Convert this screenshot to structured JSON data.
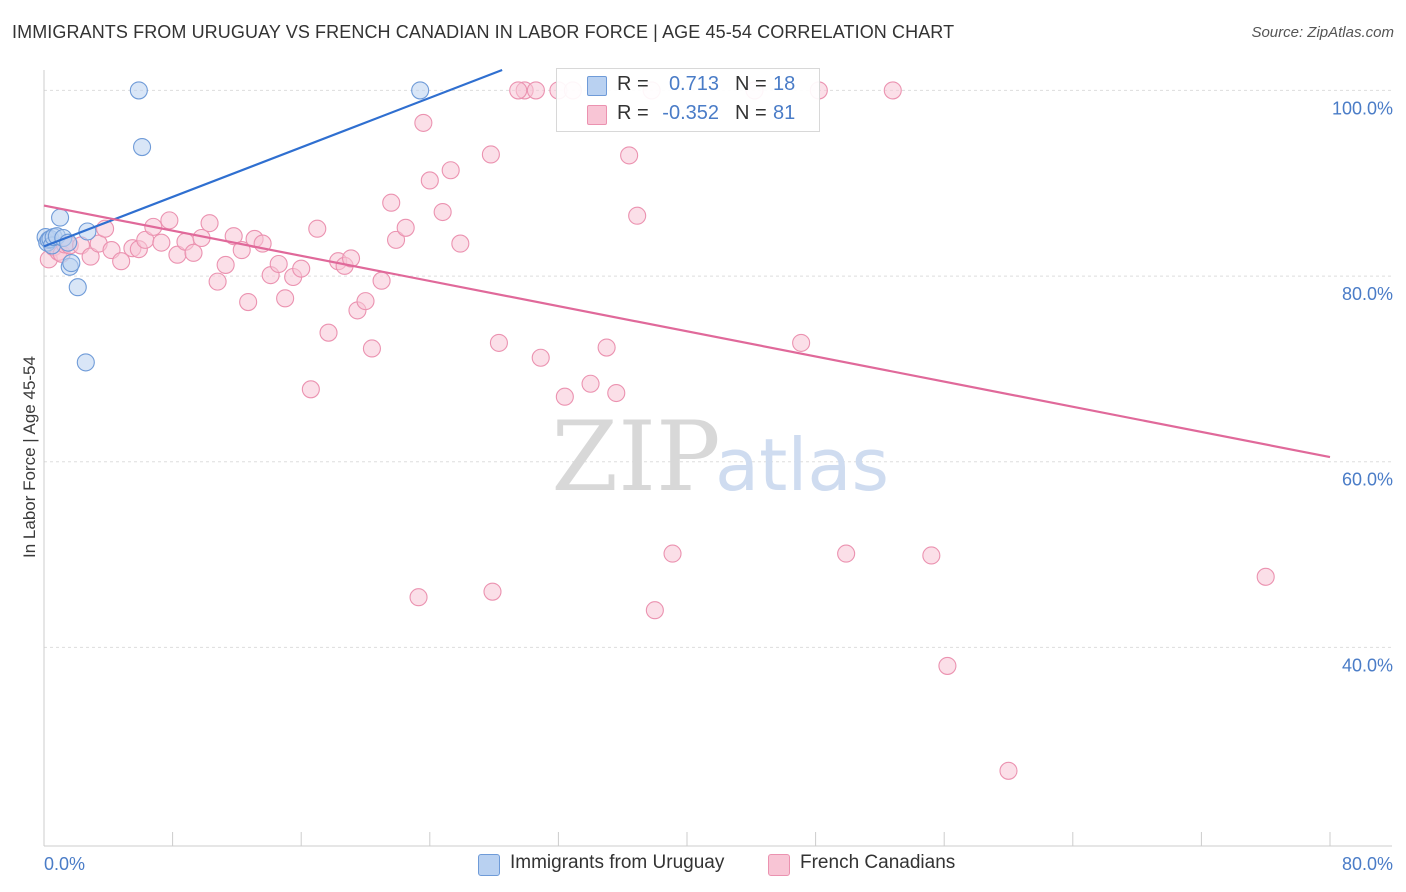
{
  "title": "IMMIGRANTS FROM URUGUAY VS FRENCH CANADIAN IN LABOR FORCE | AGE 45-54 CORRELATION CHART",
  "source": "Source: ZipAtlas.com",
  "watermark": {
    "zip": "ZIP",
    "atlas": "atlas"
  },
  "colors": {
    "blue_fill": "#b9d1f1",
    "blue_stroke": "#6f9bd8",
    "blue_line": "#2f6fd0",
    "pink_fill": "#f8c5d5",
    "pink_stroke": "#eb92b0",
    "pink_line": "#e0699a",
    "tick_text": "#4a7cc7",
    "grid": "#dddddd"
  },
  "legend": {
    "rows": [
      {
        "series": "blue",
        "r_label": "R =",
        "r_value": "0.713",
        "n_label": "N =",
        "n_value": "18"
      },
      {
        "series": "pink",
        "r_label": "R =",
        "r_value": "-0.352",
        "n_label": "N =",
        "n_value": "81"
      }
    ]
  },
  "bottom_legend": [
    {
      "series": "blue",
      "label": "Immigrants from Uruguay"
    },
    {
      "series": "pink",
      "label": "French Canadians"
    }
  ],
  "chart_data": {
    "type": "scatter",
    "title": "IMMIGRANTS FROM URUGUAY VS FRENCH CANADIAN IN LABOR FORCE | AGE 45-54 CORRELATION CHART",
    "xlabel": "",
    "ylabel": "In Labor Force | Age 45-54",
    "xlim": [
      0,
      80
    ],
    "ylim": [
      18.6,
      102.2
    ],
    "x_tick_labels": [
      {
        "value": 0,
        "label": "0.0%"
      },
      {
        "value": 80,
        "label": "80.0%"
      }
    ],
    "y_tick_labels": [
      {
        "value": 100,
        "label": "100.0%"
      },
      {
        "value": 80,
        "label": "80.0%"
      },
      {
        "value": 60,
        "label": "60.0%"
      },
      {
        "value": 40,
        "label": "40.0%"
      }
    ],
    "x_minor_ticks": [
      0,
      8,
      16,
      24,
      32,
      40,
      48,
      56,
      64,
      72,
      80
    ],
    "series": [
      {
        "name": "Immigrants from Uruguay",
        "color": "blue",
        "r": 0.713,
        "n": 18,
        "trend": {
          "x": [
            0,
            28.5
          ],
          "y": [
            83.2,
            102.2
          ]
        },
        "points": [
          [
            0.1,
            84.2
          ],
          [
            0.2,
            83.6
          ],
          [
            0.3,
            83.9
          ],
          [
            0.4,
            84.0
          ],
          [
            0.5,
            83.3
          ],
          [
            0.6,
            84.2
          ],
          [
            0.8,
            84.3
          ],
          [
            1.0,
            86.3
          ],
          [
            1.2,
            84.1
          ],
          [
            1.5,
            83.6
          ],
          [
            1.6,
            81.0
          ],
          [
            1.7,
            81.4
          ],
          [
            2.1,
            78.8
          ],
          [
            2.6,
            70.7
          ],
          [
            2.7,
            84.8
          ],
          [
            5.9,
            100.0
          ],
          [
            6.1,
            93.9
          ],
          [
            23.4,
            100.0
          ]
        ]
      },
      {
        "name": "French Canadians",
        "color": "pink",
        "r": -0.352,
        "n": 81,
        "trend": {
          "x": [
            0,
            80
          ],
          "y": [
            87.6,
            60.5
          ]
        },
        "points": [
          [
            0.3,
            81.8
          ],
          [
            0.6,
            83.1
          ],
          [
            0.9,
            82.6
          ],
          [
            1.1,
            82.4
          ],
          [
            1.3,
            83.4
          ],
          [
            1.6,
            83.3
          ],
          [
            2.3,
            83.3
          ],
          [
            2.9,
            82.1
          ],
          [
            3.4,
            83.5
          ],
          [
            3.8,
            85.1
          ],
          [
            4.2,
            82.8
          ],
          [
            4.8,
            81.6
          ],
          [
            5.5,
            83.0
          ],
          [
            5.9,
            82.9
          ],
          [
            6.3,
            83.9
          ],
          [
            6.8,
            85.3
          ],
          [
            7.3,
            83.6
          ],
          [
            7.8,
            86.0
          ],
          [
            8.3,
            82.3
          ],
          [
            8.8,
            83.7
          ],
          [
            9.3,
            82.5
          ],
          [
            9.8,
            84.1
          ],
          [
            10.3,
            85.7
          ],
          [
            10.8,
            79.4
          ],
          [
            11.3,
            81.2
          ],
          [
            11.8,
            84.3
          ],
          [
            12.3,
            82.8
          ],
          [
            12.7,
            77.2
          ],
          [
            13.1,
            84.0
          ],
          [
            13.6,
            83.5
          ],
          [
            14.1,
            80.1
          ],
          [
            14.6,
            81.3
          ],
          [
            15.0,
            77.6
          ],
          [
            15.5,
            79.9
          ],
          [
            16.0,
            80.8
          ],
          [
            16.6,
            67.8
          ],
          [
            17.0,
            85.1
          ],
          [
            17.7,
            73.9
          ],
          [
            18.3,
            81.6
          ],
          [
            18.7,
            81.1
          ],
          [
            19.1,
            81.9
          ],
          [
            19.5,
            76.3
          ],
          [
            20.0,
            77.3
          ],
          [
            20.4,
            72.2
          ],
          [
            21.0,
            79.5
          ],
          [
            21.6,
            87.9
          ],
          [
            21.9,
            83.9
          ],
          [
            22.5,
            85.2
          ],
          [
            23.6,
            96.5
          ],
          [
            24.0,
            90.3
          ],
          [
            24.8,
            86.9
          ],
          [
            25.3,
            91.4
          ],
          [
            25.9,
            83.5
          ],
          [
            27.8,
            93.1
          ],
          [
            28.3,
            72.8
          ],
          [
            29.9,
            100.0
          ],
          [
            30.6,
            100.0
          ],
          [
            30.9,
            71.2
          ],
          [
            32.0,
            100.0
          ],
          [
            32.4,
            67.0
          ],
          [
            32.9,
            100.0
          ],
          [
            34.0,
            68.4
          ],
          [
            35.0,
            72.3
          ],
          [
            35.6,
            67.4
          ],
          [
            36.4,
            93.0
          ],
          [
            36.9,
            86.5
          ],
          [
            37.8,
            100.0
          ],
          [
            38.0,
            44.0
          ],
          [
            39.1,
            50.1
          ],
          [
            44.2,
            100.0
          ],
          [
            47.1,
            72.8
          ],
          [
            48.2,
            100.0
          ],
          [
            49.9,
            50.1
          ],
          [
            52.8,
            100.0
          ],
          [
            55.2,
            49.9
          ],
          [
            56.2,
            38.0
          ],
          [
            60.0,
            26.7
          ],
          [
            76.0,
            47.6
          ],
          [
            23.3,
            45.4
          ],
          [
            27.9,
            46.0
          ],
          [
            29.5,
            100.0
          ]
        ]
      }
    ]
  }
}
